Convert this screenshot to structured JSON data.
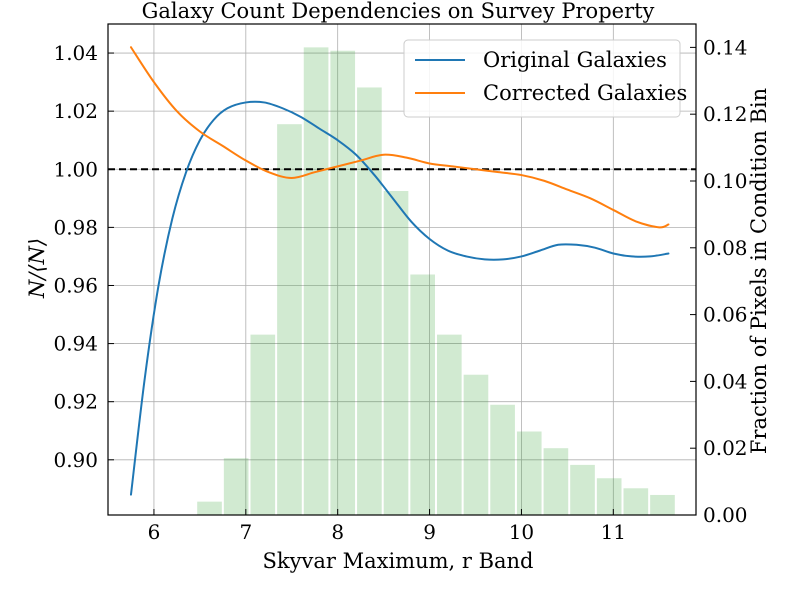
{
  "chart_data": {
    "type": "line",
    "title": "Galaxy Count Dependencies on Survey Property",
    "xlabel": "Skyvar Maximum, r Band",
    "ylabel": "N/⟨N⟩",
    "y2label": "Fraction of Pixels in Condition Bin",
    "xlim": [
      5.5,
      11.9
    ],
    "ylim": [
      0.881,
      1.05
    ],
    "y2lim": [
      0.0,
      0.147
    ],
    "xticks": [
      "6",
      "7",
      "8",
      "9",
      "10",
      "11"
    ],
    "yticks": [
      "0.90",
      "0.92",
      "0.94",
      "0.96",
      "0.98",
      "1.00",
      "1.02",
      "1.04"
    ],
    "y2ticks": [
      "0.00",
      "0.02",
      "0.04",
      "0.06",
      "0.08",
      "0.10",
      "0.12",
      "0.14"
    ],
    "grid": true,
    "legend_position": "top-right",
    "reference_line": {
      "y": 1.0,
      "style": "dashed",
      "color": "#000000"
    },
    "series": [
      {
        "name": "Original Galaxies",
        "color": "#1f77b4",
        "x": [
          5.75,
          5.9,
          6.05,
          6.2,
          6.35,
          6.5,
          6.65,
          6.8,
          7.0,
          7.2,
          7.4,
          7.6,
          7.8,
          8.0,
          8.2,
          8.4,
          8.6,
          8.8,
          9.0,
          9.2,
          9.4,
          9.6,
          9.8,
          10.0,
          10.2,
          10.4,
          10.6,
          10.8,
          11.0,
          11.2,
          11.4,
          11.6
        ],
        "values": [
          0.888,
          0.928,
          0.96,
          0.983,
          0.999,
          1.01,
          1.017,
          1.021,
          1.023,
          1.023,
          1.021,
          1.018,
          1.014,
          1.01,
          1.005,
          0.998,
          0.99,
          0.982,
          0.976,
          0.972,
          0.97,
          0.969,
          0.969,
          0.97,
          0.972,
          0.974,
          0.974,
          0.973,
          0.971,
          0.97,
          0.97,
          0.971
        ]
      },
      {
        "name": "Corrected Galaxies",
        "color": "#ff7f0e",
        "x": [
          5.75,
          6.0,
          6.25,
          6.5,
          6.75,
          7.0,
          7.25,
          7.5,
          7.75,
          8.0,
          8.25,
          8.5,
          8.75,
          9.0,
          9.25,
          9.5,
          9.75,
          10.0,
          10.25,
          10.5,
          10.75,
          11.0,
          11.25,
          11.5,
          11.6
        ],
        "values": [
          1.042,
          1.03,
          1.02,
          1.013,
          1.008,
          1.003,
          0.999,
          0.997,
          0.999,
          1.001,
          1.003,
          1.005,
          1.004,
          1.002,
          1.001,
          1.0,
          0.999,
          0.998,
          0.996,
          0.993,
          0.99,
          0.986,
          0.982,
          0.98,
          0.981
        ]
      }
    ],
    "histogram": {
      "name": "Fraction of Pixels in Condition Bin",
      "color": "#2ca02c",
      "opacity": 0.22,
      "bin_edges": [
        5.88,
        6.17,
        6.46,
        6.75,
        7.04,
        7.33,
        7.62,
        7.91,
        8.2,
        8.49,
        8.78,
        9.07,
        9.36,
        9.65,
        9.94,
        10.23,
        10.52,
        10.81,
        11.1,
        11.39,
        11.68
      ],
      "values": [
        0.0,
        0.0,
        0.004,
        0.017,
        0.054,
        0.117,
        0.14,
        0.139,
        0.128,
        0.097,
        0.072,
        0.054,
        0.042,
        0.033,
        0.025,
        0.02,
        0.015,
        0.011,
        0.008,
        0.006
      ]
    }
  }
}
